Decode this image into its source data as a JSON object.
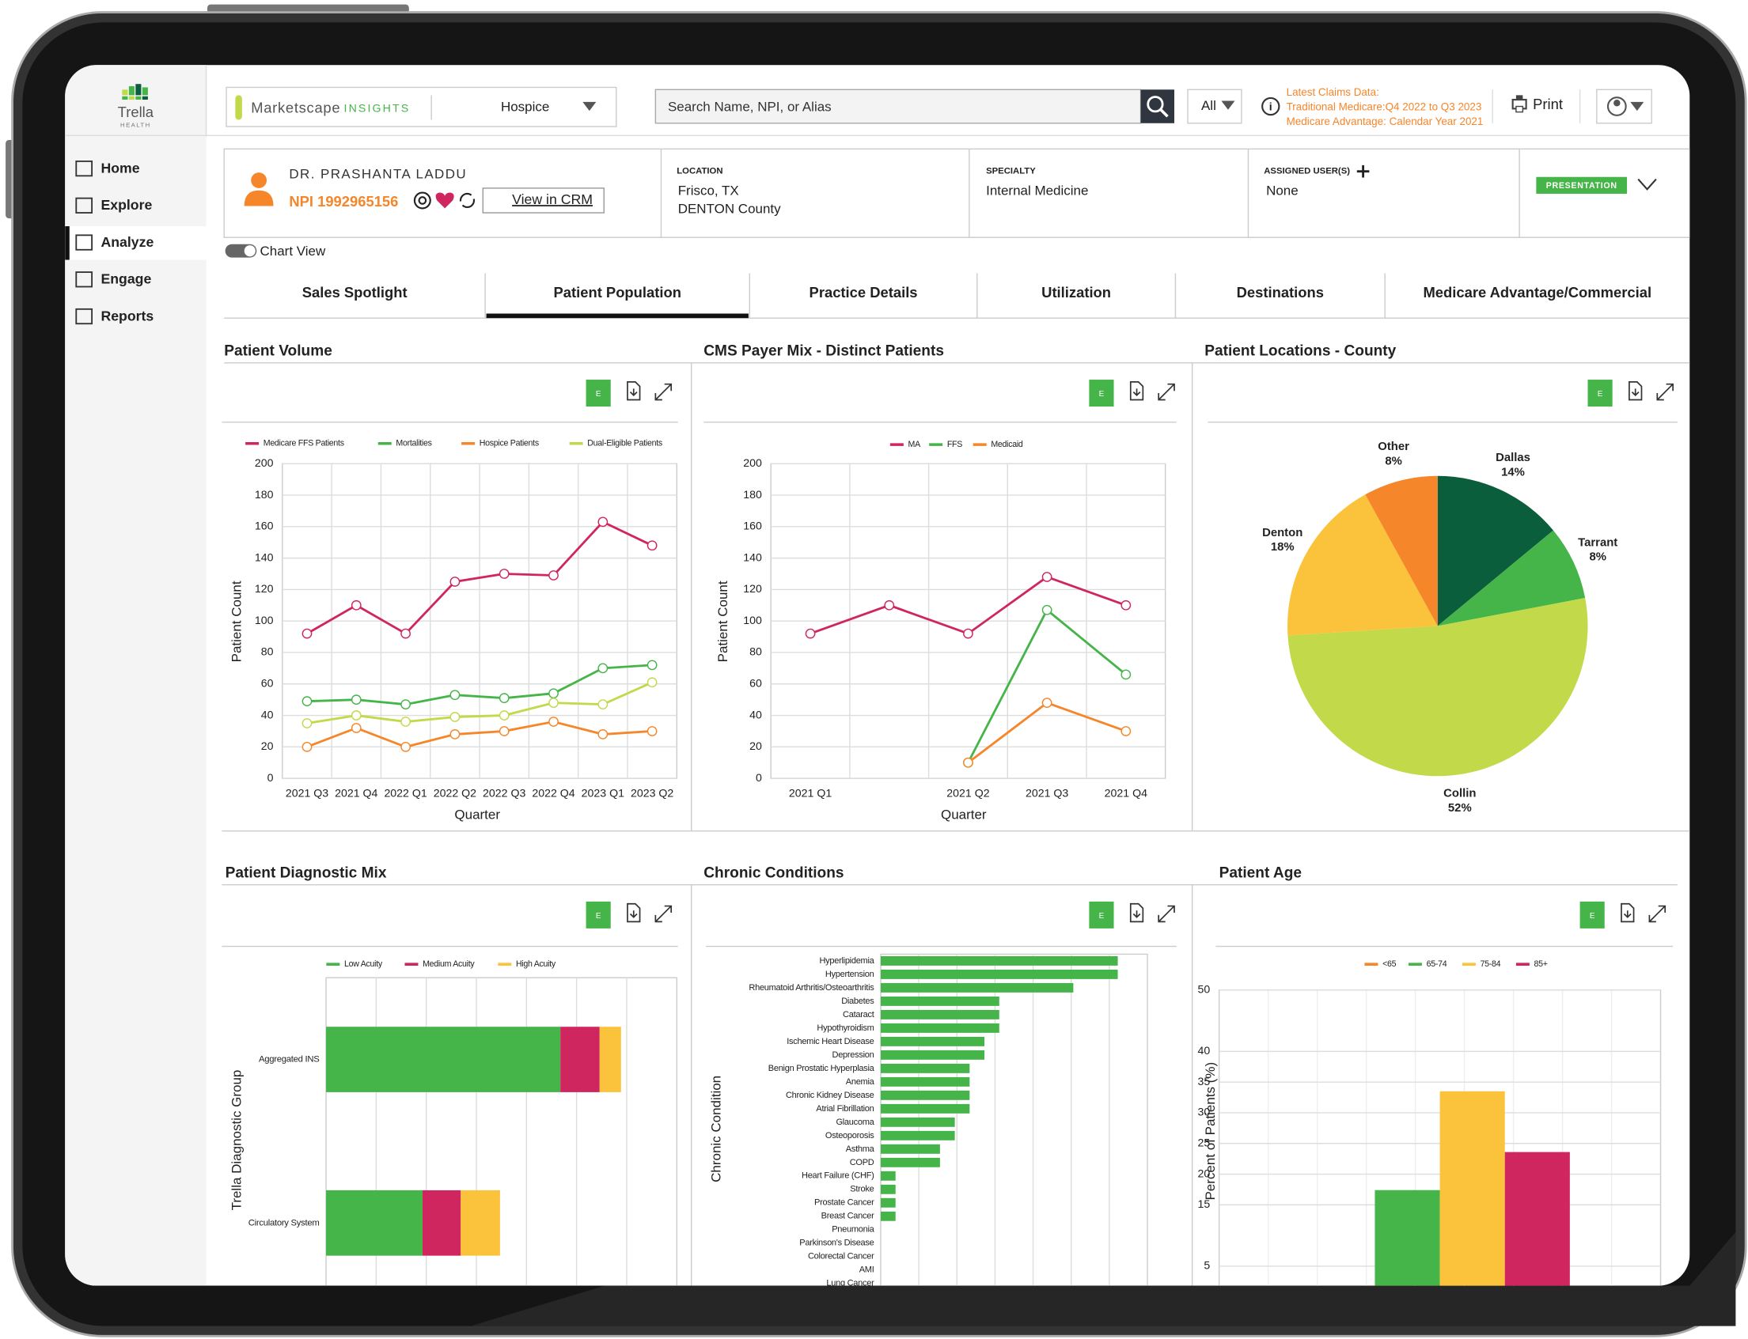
{
  "app": {
    "brand": "Trella",
    "brand_sub": "HEALTH"
  },
  "nav": [
    "Home",
    "Explore",
    "Analyze",
    "Engage",
    "Reports"
  ],
  "active_nav": 2,
  "header": {
    "product": "Marketscape",
    "product_sub": "INSIGHTS",
    "segment": "Hospice",
    "search_placeholder": "Search Name, NPI, or Alias",
    "filter": "All",
    "claims_title": "Latest Claims Data:",
    "claims_traditional": "Traditional Medicare:Q4 2022 to Q3 2023",
    "claims_advantage": "Medicare Advantage: Calendar Year 2021",
    "print": "Print"
  },
  "profile": {
    "name": "DR. PRASHANTA LADDU",
    "npi": "NPI 1992965156",
    "crm": "View in CRM",
    "location_label": "LOCATION",
    "location": [
      "Frisco, TX",
      "DENTON County"
    ],
    "specialty_label": "SPECIALTY",
    "specialty": "Internal Medicine",
    "assigned_label": "ASSIGNED USER(S)",
    "assigned": "None",
    "presentation": "PRESENTATION"
  },
  "chart_view": "Chart View",
  "tabs": [
    "Sales Spotlight",
    "Patient Population",
    "Practice Details",
    "Utilization",
    "Destinations",
    "Medicare Advantage/Commercial"
  ],
  "active_tab": 1,
  "panel_button": "E",
  "chart_data": [
    {
      "type": "line",
      "title": "Patient Volume",
      "x_label": "Quarter",
      "y_label": "Patient Count",
      "categories": [
        "2021 Q3",
        "2021 Q4",
        "2022 Q1",
        "2022 Q2",
        "2022 Q3",
        "2022 Q4",
        "2023 Q1",
        "2023 Q2"
      ],
      "series": [
        {
          "name": "Medicare FFS Patients",
          "color": "#d0265f",
          "values": [
            92,
            110,
            92,
            125,
            130,
            129,
            163,
            148
          ]
        },
        {
          "name": "Mortalities",
          "color": "#46b549",
          "values": [
            49,
            50,
            47,
            53,
            51,
            54,
            70,
            72
          ]
        },
        {
          "name": "Hospice Patients",
          "color": "#f5862a",
          "values": [
            20,
            32,
            20,
            28,
            30,
            36,
            28,
            30
          ]
        },
        {
          "name": "Dual-Eligible Patients",
          "color": "#c2d94a",
          "values": [
            35,
            40,
            36,
            39,
            40,
            48,
            47,
            61
          ]
        }
      ],
      "ylim": [
        0,
        200
      ],
      "yticks": [
        0,
        20,
        40,
        60,
        80,
        100,
        120,
        140,
        160,
        180,
        200
      ],
      "grid": true
    },
    {
      "type": "line",
      "title": "CMS Payer Mix - Distinct Patients",
      "x_label": "Quarter",
      "y_label": "Patient Count",
      "categories": [
        "2021 Q1",
        null,
        "2021 Q2",
        "2021 Q3",
        "2021 Q4"
      ],
      "series": [
        {
          "name": "MA",
          "color": "#d0265f",
          "values": [
            92,
            110,
            92,
            128,
            110
          ]
        },
        {
          "name": "FFS",
          "color": "#46b549",
          "values": [
            null,
            null,
            10,
            107,
            66
          ]
        },
        {
          "name": "Medicaid",
          "color": "#f5862a",
          "values": [
            null,
            null,
            10,
            48,
            30
          ]
        }
      ],
      "ylim": [
        0,
        200
      ],
      "yticks": [
        0,
        20,
        40,
        60,
        80,
        100,
        120,
        140,
        160,
        180,
        200
      ],
      "grid": true
    },
    {
      "type": "pie",
      "title": "Patient Locations - County",
      "categories": [
        "Dallas",
        "Tarrant",
        "Collin",
        "Denton",
        "Other"
      ],
      "values": [
        14,
        8,
        52,
        18,
        8
      ],
      "value_labels": [
        "14%",
        "8%",
        "52%",
        "18%",
        "8%"
      ],
      "colors": [
        "#0b5e3b",
        "#46b549",
        "#c2d94a",
        "#fbc23c",
        "#f5862a"
      ]
    },
    {
      "type": "hbar",
      "stacked": true,
      "title": "Patient Diagnostic Mix",
      "y_label": "Trella Diagnostic Group",
      "categories": [
        "Aggregated INS",
        "Circulatory System"
      ],
      "series": [
        {
          "name": "Low Acuity",
          "color": "#46b549",
          "values": [
            66.8,
            27.5
          ]
        },
        {
          "name": "Medium Acuity",
          "color": "#d0265f",
          "values": [
            11.2,
            10.9
          ]
        },
        {
          "name": "High Acuity",
          "color": "#fbc23c",
          "values": [
            6.1,
            11.2
          ]
        }
      ],
      "xlim": [
        0,
        100
      ]
    },
    {
      "type": "hbar",
      "stacked": false,
      "title": "Chronic Conditions",
      "y_label": "Chronic Condition",
      "color": "#46b549",
      "categories": [
        "Hyperlipidemia",
        "Hypertension",
        "Rheumatoid Arthritis/Osteoarthritis",
        "Diabetes",
        "Cataract",
        "Hypothyroidism",
        "Ischemic Heart Disease",
        "Depression",
        "Benign Prostatic Hyperplasia",
        "Anemia",
        "Chronic Kidney Disease",
        "Atrial Fibrillation",
        "Glaucoma",
        "Osteoporosis",
        "Asthma",
        "COPD",
        "Heart Failure (CHF)",
        "Stroke",
        "Prostate Cancer",
        "Breast Cancer",
        "Pneumonia",
        "Parkinson's Disease",
        "Colorectal Cancer",
        "AMI",
        "Lung Cancer"
      ],
      "values": [
        16,
        16,
        13,
        8,
        8,
        8,
        7,
        7,
        6,
        6,
        6,
        6,
        5,
        5,
        4,
        4,
        1,
        1,
        1,
        1,
        0,
        0,
        0,
        0,
        0
      ],
      "xlim": [
        0,
        18
      ]
    },
    {
      "type": "bar",
      "title": "Patient Age",
      "y_label": "Percent of Patients (%)",
      "categories": [
        null
      ],
      "series": [
        {
          "name": "<65",
          "color": "#f5862a",
          "values": [
            0
          ]
        },
        {
          "name": "65-74",
          "color": "#46b549",
          "values": [
            17.4
          ]
        },
        {
          "name": "75-84",
          "color": "#fbc23c",
          "values": [
            33.5
          ]
        },
        {
          "name": "85+",
          "color": "#d0265f",
          "values": [
            23.6
          ]
        }
      ],
      "ylim": [
        0,
        50
      ],
      "yticks": [
        5,
        15,
        20,
        25,
        30,
        35,
        40,
        50
      ],
      "grid": true
    }
  ]
}
